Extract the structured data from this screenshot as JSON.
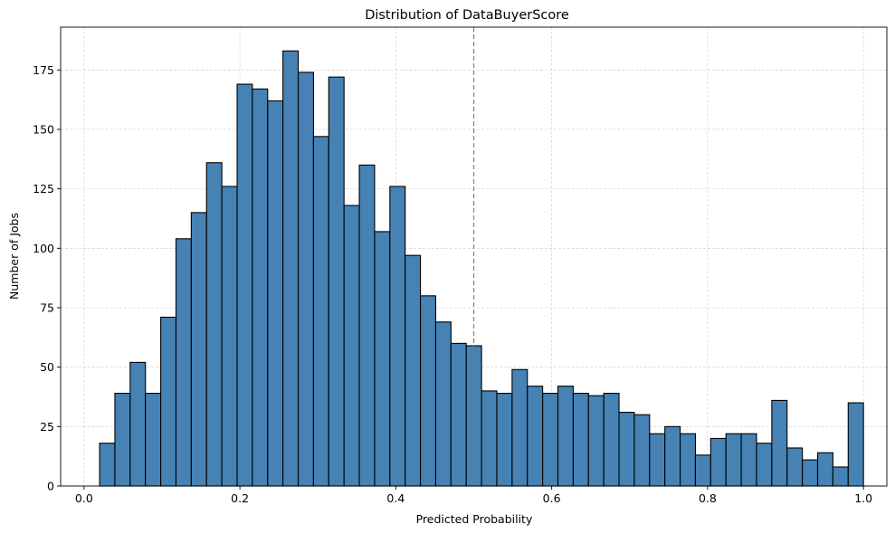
{
  "chart_data": {
    "type": "bar",
    "title": "Distribution of DataBuyerScore",
    "xlabel": "Predicted Probability",
    "ylabel": "Number of Jobs",
    "xlim": [
      -0.03,
      1.03
    ],
    "ylim": [
      0,
      193
    ],
    "xticks": [
      0.0,
      0.2,
      0.4,
      0.6,
      0.8,
      1.0
    ],
    "xtick_labels": [
      "0.0",
      "0.2",
      "0.4",
      "0.6",
      "0.8",
      "1.0"
    ],
    "yticks": [
      0,
      25,
      50,
      75,
      100,
      125,
      150,
      175
    ],
    "ytick_labels": [
      "0",
      "25",
      "50",
      "75",
      "100",
      "125",
      "150",
      "175"
    ],
    "grid": true,
    "bin_start": 0.02,
    "bin_end": 1.0,
    "values": [
      18,
      39,
      52,
      39,
      71,
      104,
      115,
      136,
      126,
      169,
      167,
      162,
      183,
      174,
      147,
      172,
      118,
      135,
      107,
      126,
      97,
      80,
      69,
      60,
      59,
      40,
      39,
      49,
      42,
      39,
      42,
      39,
      38,
      39,
      31,
      30,
      22,
      25,
      22,
      13,
      20,
      22,
      22,
      18,
      36,
      16,
      11,
      14,
      8,
      35
    ],
    "threshold_line": 0.5,
    "colors": {
      "bar_fill": "#4682b4",
      "bar_edge": "#000000",
      "threshold": "#808080",
      "grid": "#cccccc"
    }
  }
}
